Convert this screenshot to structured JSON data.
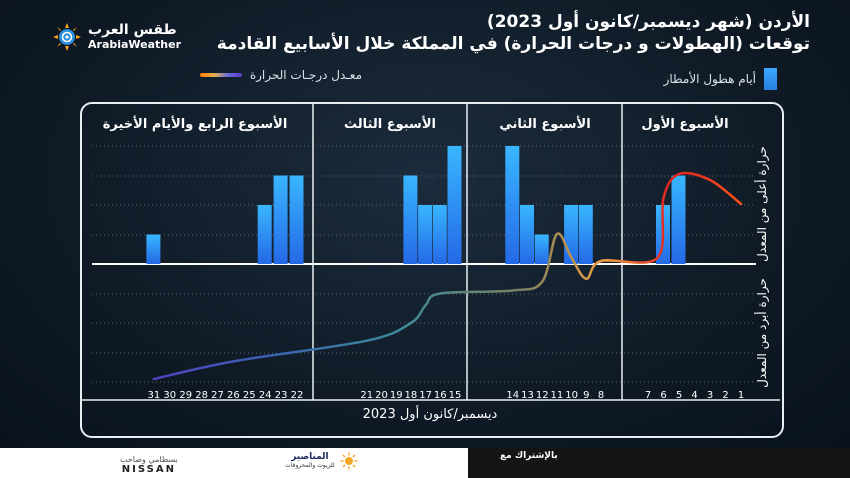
{
  "brand": {
    "name_ar": "طقس العرب",
    "name_en": "ArabiaWeather"
  },
  "title": {
    "line1_bold": "الأردن",
    "line1_rest": " (شهر ديسمبر/كانون أول 2023)",
    "line2": "توقعات (الهطولات و درجات الحرارة) في المملكة خلال الأسابيع القادمة"
  },
  "legend": {
    "rain": "أيام هطول الأمطار",
    "temp": "معـدل درجـات الحرارة"
  },
  "colors": {
    "bar_top": "#39b6ff",
    "bar_bottom": "#2469e6",
    "temp_warm": "#ff6a1a",
    "temp_cool": "#5a35c8"
  },
  "chart_data": {
    "type": "bar",
    "xlabel": "ديسمبر/كانون أول 2023",
    "y_label_upper": "حرارة أعلى من المعدل",
    "y_label_lower": "حرارة أبرد من المعدل",
    "x_direction": "right-to-left",
    "weeks": [
      "الأسبوع الأول",
      "الأسبوع الثاني",
      "الأسبوع الثالث",
      "الأسبوع الرابع والأيام الأخيرة"
    ],
    "week_day_ranges": [
      [
        1,
        7
      ],
      [
        8,
        14
      ],
      [
        15,
        21
      ],
      [
        22,
        31
      ]
    ],
    "day_ticks": [
      1,
      2,
      3,
      4,
      5,
      6,
      7,
      8,
      9,
      10,
      11,
      12,
      13,
      14,
      15,
      16,
      17,
      18,
      19,
      20,
      21,
      22,
      23,
      24,
      25,
      26,
      27,
      28,
      29,
      30,
      31
    ],
    "rain_ylim": [
      0,
      4
    ],
    "rain_days": [
      {
        "day": 5,
        "value": 3
      },
      {
        "day": 6,
        "value": 2
      },
      {
        "day": 9,
        "value": 2
      },
      {
        "day": 10,
        "value": 2
      },
      {
        "day": 12,
        "value": 1
      },
      {
        "day": 13,
        "value": 2
      },
      {
        "day": 14,
        "value": 4
      },
      {
        "day": 15,
        "value": 4
      },
      {
        "day": 16,
        "value": 2
      },
      {
        "day": 17,
        "value": 2
      },
      {
        "day": 18,
        "value": 3
      },
      {
        "day": 22,
        "value": 3
      },
      {
        "day": 23,
        "value": 3
      },
      {
        "day": 24,
        "value": 2
      },
      {
        "day": 31,
        "value": 1
      }
    ],
    "temp_ylim": [
      -4,
      3
    ],
    "temp_anomaly": [
      {
        "day": 1,
        "value": 2
      },
      {
        "day": 3,
        "value": 2.8
      },
      {
        "day": 5,
        "value": 3
      },
      {
        "day": 6,
        "value": 2.2
      },
      {
        "day": 6.4,
        "value": 0.2
      },
      {
        "day": 8,
        "value": 0.1
      },
      {
        "day": 9,
        "value": -0.5
      },
      {
        "day": 10,
        "value": 0.2
      },
      {
        "day": 11,
        "value": 1
      },
      {
        "day": 12,
        "value": -0.6
      },
      {
        "day": 14,
        "value": -0.9
      },
      {
        "day": 16,
        "value": -1.0
      },
      {
        "day": 17,
        "value": -1.4
      },
      {
        "day": 18,
        "value": -2.0
      },
      {
        "day": 21,
        "value": -2.6
      },
      {
        "day": 26,
        "value": -3.3
      },
      {
        "day": 31,
        "value": -3.9
      }
    ]
  },
  "footer": {
    "sponsor_label": "بالإشتراك مع",
    "sponsor1_ar": "المناصير",
    "sponsor1_sub": "للزيوت والمحروقات",
    "sponsor2_ar": "بسطامي وصاحب",
    "sponsor2_en": "NISSAN"
  }
}
